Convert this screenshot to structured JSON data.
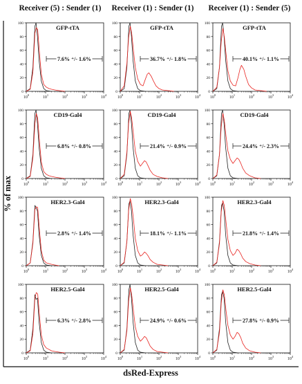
{
  "figure": {
    "column_headers": [
      "Receiver (5) : Sender (1)",
      "Receiver (1) : Sender (1)",
      "Receiver (1) : Sender (5)"
    ],
    "y_axis_label": "% of max",
    "x_axis_label": "dsRed-Express"
  },
  "colors": {
    "receiver_only": "#222222",
    "co_culture": "#e8231f",
    "axis": "#111111",
    "gate": "#111111"
  },
  "chart_data": [
    {
      "type": "area",
      "row": 0,
      "col": 0,
      "title": "GFP-tTA",
      "annotation": "7.6% ⁺/- 1.6%",
      "xscale": "log",
      "xlim": [
        1,
        10000
      ],
      "ylim": [
        0,
        100
      ],
      "xlabel": "",
      "ylabel": "",
      "series": [
        {
          "color": "black",
          "x": [
            1,
            1.6,
            2.2,
            2.8,
            3.2,
            3.8,
            4.6,
            6,
            8,
            11,
            20
          ],
          "y": [
            0,
            4,
            35,
            95,
            100,
            80,
            45,
            15,
            4,
            1,
            0
          ]
        },
        {
          "color": "red",
          "x": [
            1,
            1.6,
            2.2,
            2.8,
            3.3,
            3.9,
            4.7,
            6,
            8,
            11,
            15,
            20,
            30,
            50,
            100
          ],
          "y": [
            0,
            3,
            28,
            85,
            93,
            90,
            60,
            25,
            10,
            6,
            4,
            3,
            2,
            1,
            0
          ]
        }
      ]
    },
    {
      "type": "area",
      "row": 0,
      "col": 1,
      "title": "GFP-tTA",
      "annotation": "36.7% ⁺/- 1.8%",
      "xscale": "log",
      "xlim": [
        1,
        10000
      ],
      "ylim": [
        0,
        100
      ],
      "xlabel": "",
      "ylabel": "",
      "series": [
        {
          "color": "black",
          "x": [
            1,
            1.6,
            2.2,
            2.8,
            3.2,
            3.8,
            4.6,
            6,
            8,
            11,
            20
          ],
          "y": [
            0,
            4,
            35,
            95,
            100,
            80,
            45,
            15,
            4,
            1,
            0
          ]
        },
        {
          "color": "red",
          "x": [
            1,
            1.6,
            2.2,
            2.7,
            3.3,
            3.9,
            4.8,
            6,
            8,
            11,
            15,
            20,
            25,
            30,
            40,
            50,
            70,
            100,
            150,
            300,
            600
          ],
          "y": [
            0,
            8,
            40,
            78,
            95,
            85,
            60,
            35,
            18,
            10,
            8,
            18,
            25,
            27,
            22,
            16,
            8,
            4,
            2,
            1,
            0
          ]
        }
      ]
    },
    {
      "type": "area",
      "row": 0,
      "col": 2,
      "title": "GFP-tTA",
      "annotation": "40.1% ⁺/- 1.1%",
      "xscale": "log",
      "xlim": [
        1,
        10000
      ],
      "ylim": [
        0,
        100
      ],
      "xlabel": "",
      "ylabel": "",
      "series": [
        {
          "color": "black",
          "x": [
            1,
            1.6,
            2.2,
            2.8,
            3.2,
            3.8,
            4.6,
            6,
            8,
            11,
            20
          ],
          "y": [
            0,
            4,
            35,
            95,
            100,
            80,
            45,
            15,
            4,
            1,
            0
          ]
        },
        {
          "color": "red",
          "x": [
            1,
            1.6,
            2.2,
            2.7,
            3.3,
            3.9,
            4.8,
            6,
            8,
            11,
            15,
            20,
            25,
            30,
            40,
            50,
            70,
            100,
            150,
            300,
            600
          ],
          "y": [
            0,
            6,
            35,
            72,
            92,
            80,
            55,
            30,
            15,
            9,
            8,
            20,
            32,
            38,
            32,
            22,
            10,
            5,
            2,
            1,
            0
          ]
        }
      ]
    },
    {
      "type": "area",
      "row": 1,
      "col": 0,
      "title": "CD19-Gal4",
      "annotation": "6.8% ⁺/- 0.8%",
      "xscale": "log",
      "xlim": [
        1,
        10000
      ],
      "ylim": [
        0,
        100
      ],
      "xlabel": "",
      "ylabel": "",
      "series": [
        {
          "color": "black",
          "x": [
            1,
            1.6,
            2.2,
            2.8,
            3.2,
            3.8,
            4.6,
            6,
            8,
            11,
            20
          ],
          "y": [
            0,
            4,
            35,
            95,
            100,
            80,
            45,
            15,
            4,
            1,
            0
          ]
        },
        {
          "color": "red",
          "x": [
            1,
            1.6,
            2.2,
            2.8,
            3.3,
            3.9,
            4.7,
            6,
            8,
            11,
            15,
            20,
            30,
            50,
            100
          ],
          "y": [
            0,
            3,
            30,
            80,
            95,
            88,
            58,
            24,
            10,
            6,
            4,
            3,
            2,
            1,
            0
          ]
        }
      ]
    },
    {
      "type": "area",
      "row": 1,
      "col": 1,
      "title": "CD19-Gal4",
      "annotation": "21.4% ⁺/- 0.9%",
      "xscale": "log",
      "xlim": [
        1,
        10000
      ],
      "ylim": [
        0,
        100
      ],
      "xlabel": "",
      "ylabel": "",
      "series": [
        {
          "color": "black",
          "x": [
            1,
            1.6,
            2.2,
            2.8,
            3.2,
            3.8,
            4.6,
            6,
            8,
            11,
            20
          ],
          "y": [
            0,
            4,
            35,
            95,
            100,
            80,
            45,
            15,
            4,
            1,
            0
          ]
        },
        {
          "color": "red",
          "x": [
            1,
            1.6,
            2.2,
            2.7,
            3.3,
            3.9,
            4.8,
            6,
            8,
            11,
            14,
            18,
            22,
            28,
            35,
            50,
            80,
            150,
            300
          ],
          "y": [
            0,
            6,
            38,
            80,
            98,
            88,
            65,
            40,
            25,
            18,
            22,
            26,
            24,
            18,
            12,
            6,
            3,
            1,
            0
          ]
        }
      ]
    },
    {
      "type": "area",
      "row": 1,
      "col": 2,
      "title": "CD19-Gal4",
      "annotation": "24.4% ⁺/- 2.3%",
      "xscale": "log",
      "xlim": [
        1,
        10000
      ],
      "ylim": [
        0,
        100
      ],
      "xlabel": "",
      "ylabel": "",
      "series": [
        {
          "color": "black",
          "x": [
            1,
            1.6,
            2.2,
            2.8,
            3.2,
            3.8,
            4.6,
            6,
            8,
            11,
            20
          ],
          "y": [
            0,
            4,
            35,
            95,
            100,
            80,
            45,
            15,
            4,
            1,
            0
          ]
        },
        {
          "color": "red",
          "x": [
            1,
            1.6,
            2.2,
            2.7,
            3.3,
            3.9,
            4.8,
            6,
            8,
            11,
            14,
            18,
            22,
            28,
            35,
            50,
            80,
            150,
            300
          ],
          "y": [
            0,
            5,
            35,
            75,
            95,
            85,
            62,
            40,
            28,
            22,
            26,
            30,
            28,
            22,
            15,
            8,
            4,
            1,
            0
          ]
        }
      ]
    },
    {
      "type": "area",
      "row": 2,
      "col": 0,
      "title": "HER2.3-Gal4",
      "annotation": "2.8% ⁺/- 1.4%",
      "xscale": "log",
      "xlim": [
        1,
        10000
      ],
      "ylim": [
        0,
        100
      ],
      "xlabel": "",
      "ylabel": "",
      "series": [
        {
          "color": "black",
          "x": [
            1,
            1.6,
            2.2,
            2.8,
            3.2,
            3.8,
            4.6,
            6,
            8,
            11,
            20
          ],
          "y": [
            0,
            4,
            35,
            88,
            85,
            80,
            45,
            15,
            4,
            1,
            0
          ]
        },
        {
          "color": "red",
          "x": [
            1,
            1.6,
            2.2,
            2.8,
            3.3,
            3.9,
            4.7,
            6,
            8,
            11,
            15,
            20,
            30,
            50
          ],
          "y": [
            0,
            4,
            32,
            82,
            86,
            85,
            55,
            22,
            8,
            4,
            3,
            2,
            1,
            0
          ]
        }
      ]
    },
    {
      "type": "area",
      "row": 2,
      "col": 1,
      "title": "HER2.3-Gal4",
      "annotation": "18.1% ⁺/- 1.1%",
      "xscale": "log",
      "xlim": [
        1,
        10000
      ],
      "ylim": [
        0,
        100
      ],
      "xlabel": "",
      "ylabel": "",
      "series": [
        {
          "color": "black",
          "x": [
            1,
            1.6,
            2.2,
            2.8,
            3.2,
            3.8,
            4.6,
            6,
            8,
            11,
            20
          ],
          "y": [
            0,
            4,
            35,
            90,
            95,
            80,
            45,
            15,
            4,
            1,
            0
          ]
        },
        {
          "color": "red",
          "x": [
            1,
            1.6,
            2.2,
            2.7,
            3.3,
            3.9,
            4.8,
            6,
            8,
            11,
            14,
            18,
            22,
            28,
            35,
            50,
            80,
            150,
            300
          ],
          "y": [
            0,
            5,
            35,
            80,
            98,
            90,
            68,
            40,
            22,
            14,
            16,
            20,
            18,
            14,
            9,
            5,
            2,
            1,
            0
          ]
        }
      ]
    },
    {
      "type": "area",
      "row": 2,
      "col": 2,
      "title": "HER2.3-Gal4",
      "annotation": "21.8% ⁺/- 1.4%",
      "xscale": "log",
      "xlim": [
        1,
        10000
      ],
      "ylim": [
        0,
        100
      ],
      "xlabel": "",
      "ylabel": "",
      "series": [
        {
          "color": "black",
          "x": [
            1,
            1.6,
            2.2,
            2.8,
            3.2,
            3.8,
            4.6,
            6,
            8,
            11,
            20
          ],
          "y": [
            0,
            4,
            35,
            88,
            92,
            80,
            45,
            15,
            4,
            1,
            0
          ]
        },
        {
          "color": "red",
          "x": [
            1,
            1.6,
            2.2,
            2.7,
            3.3,
            3.9,
            4.8,
            6,
            8,
            11,
            14,
            18,
            22,
            28,
            35,
            50,
            80,
            150,
            300
          ],
          "y": [
            0,
            5,
            32,
            78,
            95,
            88,
            64,
            38,
            22,
            15,
            18,
            24,
            22,
            17,
            11,
            6,
            3,
            1,
            0
          ]
        }
      ]
    },
    {
      "type": "area",
      "row": 3,
      "col": 0,
      "title": "HER2.5-Gal4",
      "annotation": "6.3% ⁺/- 2.8%",
      "xscale": "log",
      "xlim": [
        1,
        10000
      ],
      "ylim": [
        0,
        100
      ],
      "xlabel": "",
      "ylabel": "",
      "series": [
        {
          "color": "black",
          "x": [
            1,
            1.6,
            2.2,
            2.8,
            3.2,
            3.8,
            4.6,
            6,
            8,
            11,
            20
          ],
          "y": [
            0,
            4,
            35,
            85,
            78,
            80,
            45,
            15,
            4,
            1,
            0
          ]
        },
        {
          "color": "red",
          "x": [
            1,
            1.6,
            2.2,
            2.8,
            3.3,
            3.9,
            4.7,
            6,
            8,
            11,
            15,
            20,
            30,
            50,
            100
          ],
          "y": [
            0,
            3,
            28,
            80,
            88,
            86,
            58,
            26,
            12,
            7,
            5,
            3,
            2,
            1,
            0
          ]
        }
      ]
    },
    {
      "type": "area",
      "row": 3,
      "col": 1,
      "title": "HER2.5-Gal4",
      "annotation": "24.9% ⁺/- 0.6%",
      "xscale": "log",
      "xlim": [
        1,
        10000
      ],
      "ylim": [
        0,
        100
      ],
      "xlabel": "",
      "ylabel": "",
      "series": [
        {
          "color": "black",
          "x": [
            1,
            1.6,
            2.2,
            2.8,
            3.2,
            3.8,
            4.6,
            6,
            8,
            11,
            20
          ],
          "y": [
            0,
            4,
            35,
            92,
            100,
            80,
            45,
            15,
            4,
            1,
            0
          ]
        },
        {
          "color": "red",
          "x": [
            1,
            1.6,
            2.2,
            2.7,
            3.3,
            3.9,
            4.8,
            6,
            8,
            11,
            14,
            18,
            22,
            28,
            35,
            50,
            80,
            150,
            300
          ],
          "y": [
            0,
            5,
            32,
            75,
            95,
            85,
            62,
            38,
            24,
            17,
            20,
            24,
            22,
            16,
            10,
            5,
            2,
            1,
            0
          ]
        }
      ]
    },
    {
      "type": "area",
      "row": 3,
      "col": 2,
      "title": "HER2.5-Gal4",
      "annotation": "27.8% ⁺/- 0.9%",
      "xscale": "log",
      "xlim": [
        1,
        10000
      ],
      "ylim": [
        0,
        100
      ],
      "xlabel": "",
      "ylabel": "",
      "series": [
        {
          "color": "black",
          "x": [
            1,
            1.6,
            2.2,
            2.8,
            3.2,
            3.8,
            4.6,
            6,
            8,
            11,
            20
          ],
          "y": [
            0,
            4,
            35,
            85,
            90,
            80,
            45,
            15,
            4,
            1,
            0
          ]
        },
        {
          "color": "red",
          "x": [
            1,
            1.6,
            2.2,
            2.7,
            3.3,
            3.9,
            4.8,
            6,
            8,
            11,
            14,
            18,
            22,
            28,
            35,
            50,
            80,
            150,
            300
          ],
          "y": [
            0,
            5,
            30,
            72,
            92,
            85,
            62,
            40,
            26,
            20,
            24,
            30,
            28,
            22,
            14,
            7,
            3,
            1,
            0
          ]
        }
      ]
    }
  ]
}
